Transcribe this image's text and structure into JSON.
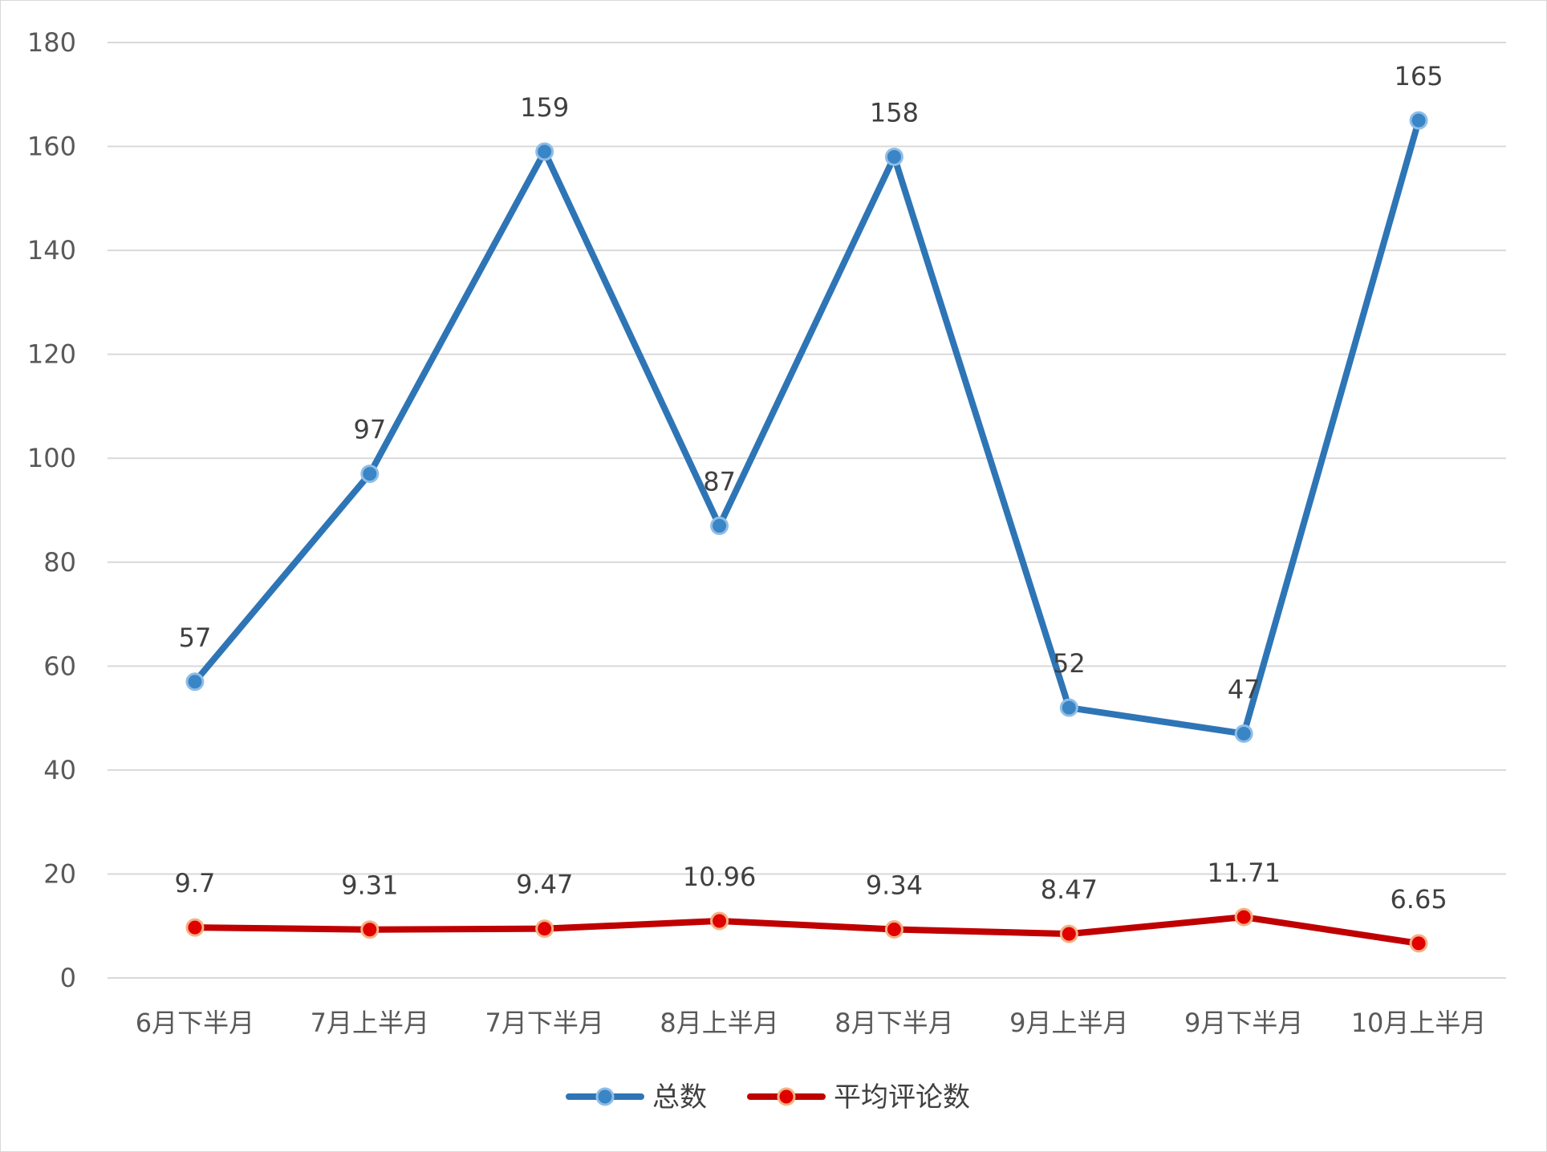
{
  "chart_data": {
    "type": "line",
    "categories": [
      "6月下半月",
      "7月上半月",
      "7月下半月",
      "8月上半月",
      "8月下半月",
      "9月上半月",
      "9月下半月",
      "10月上半月"
    ],
    "series": [
      {
        "name": "总数",
        "values": [
          57,
          97,
          159,
          87,
          158,
          52,
          47,
          165
        ],
        "labels": [
          "57",
          "97",
          "159",
          "87",
          "158",
          "52",
          "47",
          "165"
        ],
        "color": "#2e75b6",
        "marker_color": "#3a85c6"
      },
      {
        "name": "平均评论数",
        "values": [
          9.7,
          9.31,
          9.47,
          10.96,
          9.34,
          8.47,
          11.71,
          6.65
        ],
        "labels": [
          "9.7",
          "9.31",
          "9.47",
          "10.96",
          "9.34",
          "8.47",
          "11.71",
          "6.65"
        ],
        "color": "#c00000",
        "marker_color": "#e00000"
      }
    ],
    "y_ticks": [
      "0",
      "20",
      "40",
      "60",
      "80",
      "100",
      "120",
      "140",
      "160",
      "180"
    ],
    "ylim": [
      0,
      180
    ],
    "grid": true,
    "legend_position": "bottom",
    "gridline_color": "#d9d9d9"
  }
}
